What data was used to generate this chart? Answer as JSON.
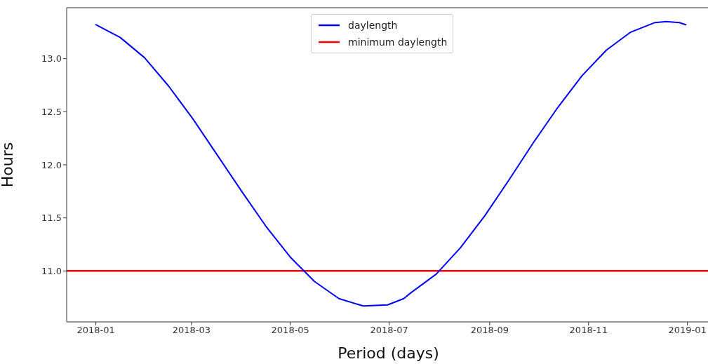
{
  "chart_data": {
    "type": "line",
    "xlabel": "Period (days)",
    "ylabel": "Hours",
    "x": [
      "2018-01-01",
      "2018-01-16",
      "2018-01-31",
      "2018-02-15",
      "2018-03-02",
      "2018-03-17",
      "2018-04-01",
      "2018-04-16",
      "2018-05-01",
      "2018-05-16",
      "2018-05-31",
      "2018-06-15",
      "2018-06-30",
      "2018-07-10",
      "2018-07-14",
      "2018-07-30",
      "2018-08-14",
      "2018-08-29",
      "2018-09-13",
      "2018-09-28",
      "2018-10-13",
      "2018-10-28",
      "2018-11-12",
      "2018-11-27",
      "2018-12-12",
      "2018-12-19",
      "2018-12-27",
      "2018-12-31"
    ],
    "series": [
      {
        "name": "daylength",
        "color": "#0000ff",
        "values": [
          13.32,
          13.2,
          13.01,
          12.74,
          12.43,
          12.09,
          11.75,
          11.42,
          11.13,
          10.9,
          10.74,
          10.67,
          10.68,
          10.74,
          10.79,
          10.97,
          11.22,
          11.52,
          11.86,
          12.21,
          12.54,
          12.84,
          13.08,
          13.25,
          13.34,
          13.35,
          13.34,
          13.32
        ]
      }
    ],
    "ref_lines": [
      {
        "axis": "y",
        "value": 11.0,
        "label": "minimum daylength",
        "color": "#ff0000"
      }
    ],
    "xlim": [
      "2017-12-14",
      "2019-01-15"
    ],
    "xticks": [
      "2018-01",
      "2018-03",
      "2018-05",
      "2018-07",
      "2018-09",
      "2018-11",
      "2019-01"
    ],
    "ylim": [
      10.52,
      13.48
    ],
    "yticks": [
      {
        "value": 11.0,
        "label": "11.0"
      },
      {
        "value": 11.5,
        "label": "11.5"
      },
      {
        "value": 12.0,
        "label": "12.0"
      },
      {
        "value": 12.5,
        "label": "12.5"
      },
      {
        "value": 13.0,
        "label": "13.0"
      }
    ],
    "grid": false,
    "legend": "top"
  }
}
